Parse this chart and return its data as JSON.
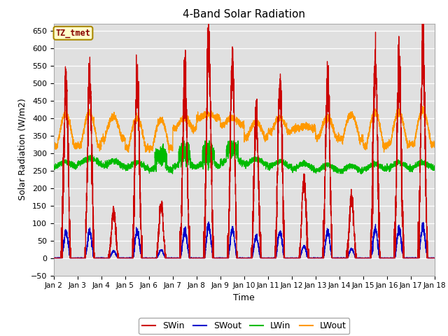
{
  "title": "4-Band Solar Radiation",
  "xlabel": "Time",
  "ylabel": "Solar Radiation (W/m2)",
  "ylim": [
    -50,
    670
  ],
  "yticks": [
    -50,
    0,
    50,
    100,
    150,
    200,
    250,
    300,
    350,
    400,
    450,
    500,
    550,
    600,
    650
  ],
  "bg_color": "#e0e0e0",
  "legend_label": "TZ_tmet",
  "legend_items": [
    "SWin",
    "SWout",
    "LWin",
    "LWout"
  ],
  "legend_colors": [
    "#cc0000",
    "#0000cc",
    "#00bb00",
    "#ff9900"
  ],
  "n_days": 16,
  "pts_per_day": 288,
  "start_day": 2,
  "SWin_peaks": [
    505,
    505,
    130,
    505,
    150,
    520,
    600,
    535,
    400,
    505,
    210,
    500,
    170,
    545,
    540,
    590
  ],
  "LWout_bases": [
    320,
    320,
    340,
    315,
    315,
    370,
    400,
    380,
    345,
    360,
    370,
    345,
    340,
    320,
    325,
    325
  ],
  "LWout_peaks": [
    410,
    415,
    405,
    400,
    395,
    400,
    410,
    400,
    390,
    400,
    375,
    400,
    410,
    415,
    415,
    420
  ],
  "LWin_bases": [
    268,
    278,
    270,
    265,
    260,
    268,
    270,
    280,
    275,
    268,
    262,
    258,
    255,
    262,
    265,
    265
  ]
}
